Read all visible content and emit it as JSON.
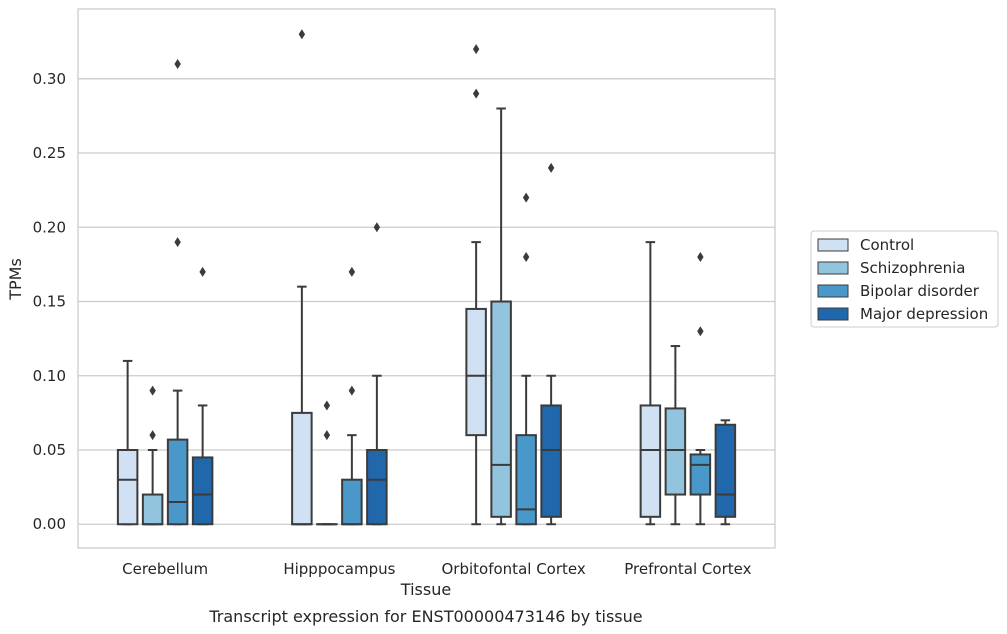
{
  "chart_data": {
    "type": "box",
    "title": "Transcript expression for ENST00000473146 by tissue",
    "xlabel": "Tissue",
    "ylabel": "TPMs",
    "ylim": [
      -0.016,
      0.347
    ],
    "yticks": [
      0.0,
      0.05,
      0.1,
      0.15,
      0.2,
      0.25,
      0.3
    ],
    "ytick_labels": [
      "0.00",
      "0.05",
      "0.10",
      "0.15",
      "0.20",
      "0.25",
      "0.30"
    ],
    "grid": "horizontal",
    "legend_position": "right",
    "categories": [
      "Cerebellum",
      "Hipppocampus",
      "Orbitofontal Cortex",
      "Prefrontal Cortex"
    ],
    "series": [
      {
        "name": "Control",
        "color": "#cfe1f2",
        "boxes": [
          {
            "whislo": 0.0,
            "q1": 0.0,
            "med": 0.03,
            "q3": 0.05,
            "whishi": 0.11,
            "fliers": []
          },
          {
            "whislo": 0.0,
            "q1": 0.0,
            "med": 0.0,
            "q3": 0.075,
            "whishi": 0.16,
            "fliers": [
              0.33
            ]
          },
          {
            "whislo": 0.0,
            "q1": 0.06,
            "med": 0.1,
            "q3": 0.145,
            "whishi": 0.19,
            "fliers": [
              0.29,
              0.32
            ]
          },
          {
            "whislo": 0.0,
            "q1": 0.005,
            "med": 0.05,
            "q3": 0.08,
            "whishi": 0.19,
            "fliers": []
          }
        ]
      },
      {
        "name": "Schizophrenia",
        "color": "#93c4de",
        "boxes": [
          {
            "whislo": 0.0,
            "q1": 0.0,
            "med": 0.0,
            "q3": 0.02,
            "whishi": 0.05,
            "fliers": [
              0.06,
              0.09
            ]
          },
          {
            "whislo": 0.0,
            "q1": 0.0,
            "med": 0.0,
            "q3": 0.0,
            "whishi": 0.0,
            "fliers": [
              0.06,
              0.08
            ]
          },
          {
            "whislo": 0.0,
            "q1": 0.005,
            "med": 0.04,
            "q3": 0.15,
            "whishi": 0.28,
            "fliers": []
          },
          {
            "whislo": 0.0,
            "q1": 0.02,
            "med": 0.05,
            "q3": 0.078,
            "whishi": 0.12,
            "fliers": []
          }
        ]
      },
      {
        "name": "Bipolar disorder",
        "color": "#4a98c9",
        "boxes": [
          {
            "whislo": 0.0,
            "q1": 0.0,
            "med": 0.015,
            "q3": 0.057,
            "whishi": 0.09,
            "fliers": [
              0.19,
              0.31
            ]
          },
          {
            "whislo": 0.0,
            "q1": 0.0,
            "med": 0.0,
            "q3": 0.03,
            "whishi": 0.06,
            "fliers": [
              0.09,
              0.17
            ]
          },
          {
            "whislo": 0.0,
            "q1": 0.0,
            "med": 0.01,
            "q3": 0.06,
            "whishi": 0.1,
            "fliers": [
              0.18,
              0.22
            ]
          },
          {
            "whislo": 0.0,
            "q1": 0.02,
            "med": 0.04,
            "q3": 0.047,
            "whishi": 0.05,
            "fliers": [
              0.13,
              0.18
            ]
          }
        ]
      },
      {
        "name": "Major depression",
        "color": "#2167ac",
        "boxes": [
          {
            "whislo": 0.0,
            "q1": 0.0,
            "med": 0.02,
            "q3": 0.045,
            "whishi": 0.08,
            "fliers": [
              0.17
            ]
          },
          {
            "whislo": 0.0,
            "q1": 0.0,
            "med": 0.03,
            "q3": 0.05,
            "whishi": 0.1,
            "fliers": [
              0.2
            ]
          },
          {
            "whislo": 0.0,
            "q1": 0.005,
            "med": 0.05,
            "q3": 0.08,
            "whishi": 0.1,
            "fliers": [
              0.24
            ]
          },
          {
            "whislo": 0.0,
            "q1": 0.005,
            "med": 0.02,
            "q3": 0.067,
            "whishi": 0.07,
            "fliers": []
          }
        ]
      }
    ]
  }
}
